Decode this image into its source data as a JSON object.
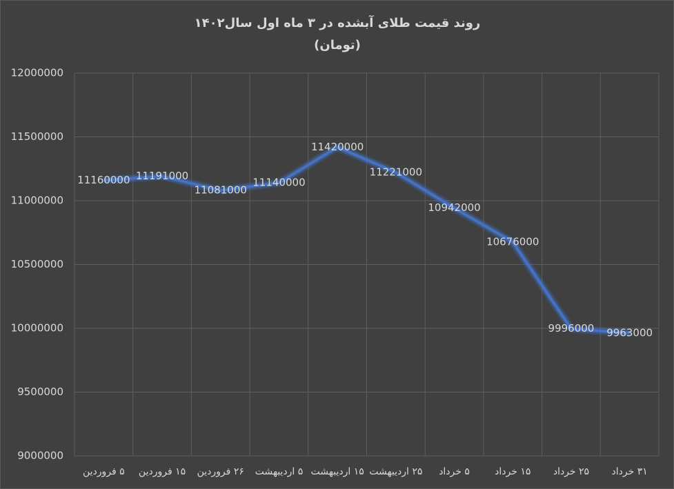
{
  "chart_data": {
    "type": "line",
    "title": "روند قیمت طلای آبشده در ۳ ماه اول سال۱۴۰۲",
    "subtitle": "(تومان)",
    "categories": [
      "۵ فروردین",
      "۱۵ فروردین",
      "۲۶ فروردین",
      "۵ اردیبهشت",
      "۱۵ اردیبهشت",
      "۲۵ اردیبهشت",
      "۵ خرداد",
      "۱۵ خرداد",
      "۲۵ خرداد",
      "۳۱ خرداد"
    ],
    "values": [
      11160000,
      11191000,
      11081000,
      11140000,
      11420000,
      11221000,
      10942000,
      10676000,
      9996000,
      9963000
    ],
    "color": "#4472c4",
    "ylim": [
      9000000,
      12000000
    ],
    "yticks": [
      9000000,
      9500000,
      10000000,
      10500000,
      11000000,
      11500000,
      12000000
    ],
    "grid": true
  }
}
